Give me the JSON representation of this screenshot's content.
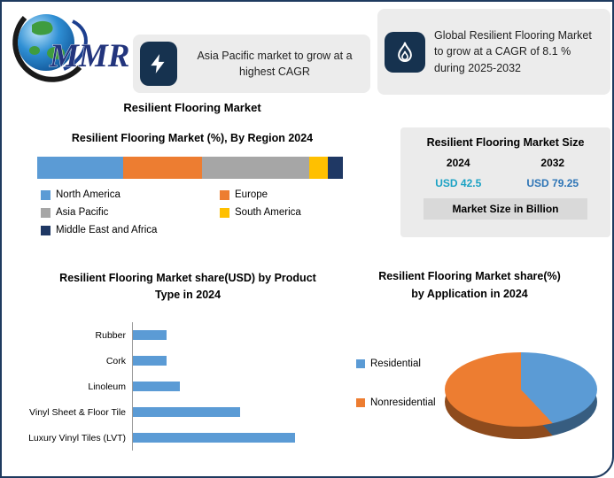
{
  "theme": {
    "navy": "#16324f",
    "panel_gray": "#ececec",
    "border_navy": "#1e3a5f"
  },
  "logo": {
    "text": "MMR"
  },
  "callouts": [
    {
      "icon": "lightning-icon",
      "text": "Asia Pacific market to grow at a highest CAGR"
    },
    {
      "icon": "flame-icon",
      "text": "Global Resilient Flooring Market to grow at a CAGR of 8.1 % during 2025-2032"
    }
  ],
  "title": "Resilient Flooring Market",
  "market_size": {
    "title": "Resilient Flooring Market Size",
    "years": [
      "2024",
      "2032"
    ],
    "values": [
      "USD 42.5",
      "USD 79.25"
    ],
    "value_colors": [
      "#1ba2c4",
      "#2e75b6"
    ],
    "unit_label": "Market Size in Billion"
  },
  "chart_data": [
    {
      "type": "bar",
      "subtype": "stacked-horizontal",
      "title": "Resilient Flooring Market (%), By Region 2024",
      "series": [
        {
          "name": "North America",
          "value": 28,
          "color": "#5b9bd5"
        },
        {
          "name": "Europe",
          "value": 26,
          "color": "#ed7d31"
        },
        {
          "name": "Asia Pacific",
          "value": 35,
          "color": "#a6a6a6"
        },
        {
          "name": "South America",
          "value": 6,
          "color": "#ffc000"
        },
        {
          "name": "Middle East and Africa",
          "value": 5,
          "color": "#1f3864"
        }
      ],
      "xlim": [
        0,
        100
      ],
      "legend_position": "bottom"
    },
    {
      "type": "bar",
      "subtype": "horizontal",
      "title": "Resilient Flooring Market share(USD)  by Product Type in 2024",
      "categories": [
        "Rubber",
        "Cork",
        "Linoleum",
        "Vinyl Sheet & Floor Tile",
        "Luxury Vinyl Tiles (LVT)"
      ],
      "values": [
        21,
        21,
        29,
        66,
        100
      ],
      "color": "#5b9bd5",
      "xlim": [
        0,
        130
      ],
      "grid": false
    },
    {
      "type": "pie",
      "title": "Resilient Flooring Market share(%)  by Application in 2024",
      "labels": [
        "Residential",
        "Nonresidential"
      ],
      "values": [
        38,
        62
      ],
      "colors": [
        "#5b9bd5",
        "#ed7d31"
      ],
      "legend_position": "left",
      "effect": "3d"
    }
  ]
}
